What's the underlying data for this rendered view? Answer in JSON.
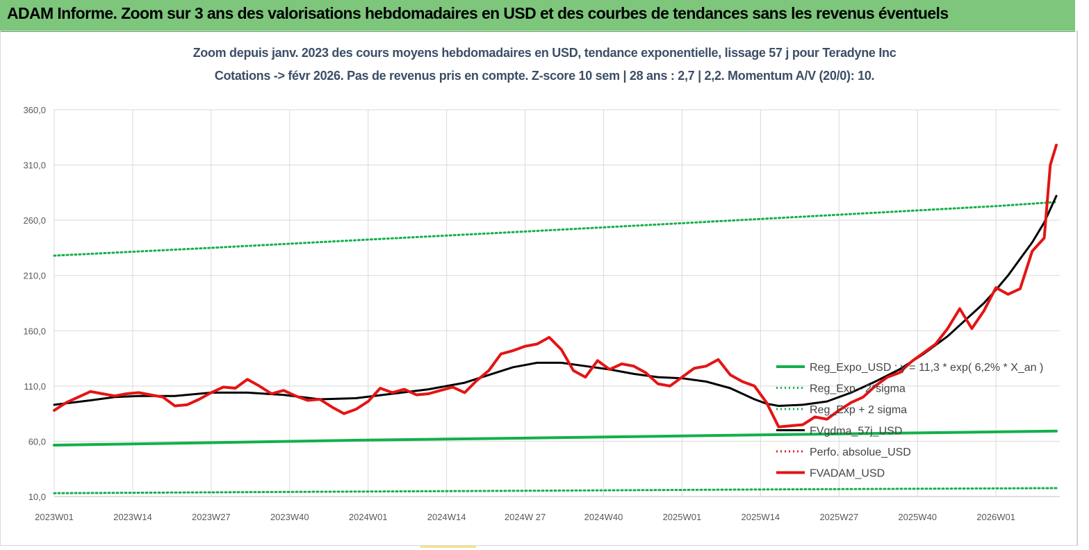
{
  "header": {
    "title": "ADAM Informe. Zoom sur 3 ans des valorisations hebdomadaires en USD et des courbes de tendances sans les revenus éventuels"
  },
  "chart_data": {
    "type": "line",
    "title": "Zoom depuis janv. 2023 des cours moyens hebdomadaires en USD, tendance exponentielle, lissage 57 j pour Teradyne Inc",
    "subtitle": "Cotations -> févr 2026.  Pas de revenus pris en compte. Z-score 10 sem  | 28 ans : 2,7 | 2,2. Momentum A/V (20/0): 10.",
    "xlabel": "",
    "ylabel": "",
    "ylim": [
      10,
      360
    ],
    "yticks": [
      "360,0",
      "310,0",
      "260,0",
      "210,0",
      "160,0",
      "110,0",
      "60,0",
      "10,0"
    ],
    "ytick_values": [
      360,
      310,
      260,
      210,
      160,
      110,
      60,
      10
    ],
    "xtick_labels": [
      "2023W01",
      "2023W14",
      "2023W27",
      "2023W40",
      "2024W01",
      "2024W14",
      "2024W 27",
      "2024W40",
      "2025W01",
      "2025W14",
      "2025W27",
      "2025W40",
      "2026W01"
    ],
    "xtick_weeks": [
      0,
      13,
      26,
      39,
      52,
      65,
      78,
      91,
      104,
      117,
      130,
      143,
      156
    ],
    "x_start": "2023W01",
    "n_weeks": 167,
    "grid": true,
    "legend_position": "right",
    "series": [
      {
        "name": "Reg_Expo_USD : y = 11,3 * exp( 6,2% *  X_an )",
        "color": "#12b04a",
        "style": "solid-thick",
        "points": [
          [
            0,
            56.5
          ],
          [
            24,
            58.5
          ],
          [
            48,
            60.8
          ],
          [
            72,
            62.5
          ],
          [
            96,
            64.2
          ],
          [
            120,
            66.0
          ],
          [
            144,
            67.6
          ],
          [
            166,
            69.2
          ]
        ]
      },
      {
        "name": "Reg_Exp - 2*sigma",
        "color": "#12b04a",
        "style": "dotted",
        "points": [
          [
            0,
            13.0
          ],
          [
            40,
            14.2
          ],
          [
            80,
            15.3
          ],
          [
            120,
            16.5
          ],
          [
            166,
            17.6
          ]
        ]
      },
      {
        "name": "Reg_Exp + 2 sigma",
        "color": "#12b04a",
        "style": "dotted",
        "points": [
          [
            0,
            228.0
          ],
          [
            26,
            235.0
          ],
          [
            52,
            242.5
          ],
          [
            78,
            249.8
          ],
          [
            104,
            257.3
          ],
          [
            130,
            265.0
          ],
          [
            156,
            272.8
          ],
          [
            166,
            276.5
          ]
        ]
      },
      {
        "name": "FVgdma_57j_USD",
        "color": "#000000",
        "style": "solid",
        "points": [
          [
            0,
            93
          ],
          [
            6,
            97
          ],
          [
            10,
            100
          ],
          [
            14,
            101
          ],
          [
            20,
            101
          ],
          [
            26,
            104
          ],
          [
            32,
            104
          ],
          [
            38,
            102
          ],
          [
            44,
            98
          ],
          [
            50,
            99
          ],
          [
            56,
            103
          ],
          [
            62,
            107
          ],
          [
            68,
            113
          ],
          [
            72,
            120
          ],
          [
            76,
            127
          ],
          [
            80,
            131
          ],
          [
            84,
            131
          ],
          [
            88,
            128
          ],
          [
            92,
            125
          ],
          [
            96,
            121
          ],
          [
            100,
            118
          ],
          [
            104,
            117
          ],
          [
            108,
            114
          ],
          [
            112,
            108
          ],
          [
            116,
            98
          ],
          [
            118,
            94
          ],
          [
            120,
            92
          ],
          [
            124,
            93
          ],
          [
            128,
            96
          ],
          [
            132,
            104
          ],
          [
            136,
            114
          ],
          [
            140,
            125
          ],
          [
            144,
            139
          ],
          [
            148,
            155
          ],
          [
            150,
            165
          ],
          [
            152,
            175
          ],
          [
            154,
            185
          ],
          [
            156,
            197
          ],
          [
            158,
            210
          ],
          [
            160,
            225
          ],
          [
            162,
            240
          ],
          [
            164,
            258
          ],
          [
            166,
            282
          ]
        ]
      },
      {
        "name": "Perfo. absolue_USD",
        "color": "#e02020",
        "style": "dotted",
        "points": []
      },
      {
        "name": "FVADAM_USD",
        "color": "#e41414",
        "style": "solid-thick",
        "points": [
          [
            0,
            88
          ],
          [
            2,
            95
          ],
          [
            4,
            100
          ],
          [
            6,
            105
          ],
          [
            8,
            103
          ],
          [
            10,
            101
          ],
          [
            12,
            103
          ],
          [
            14,
            104
          ],
          [
            16,
            102
          ],
          [
            18,
            100
          ],
          [
            20,
            92
          ],
          [
            22,
            93
          ],
          [
            24,
            98
          ],
          [
            26,
            104
          ],
          [
            28,
            109
          ],
          [
            30,
            108
          ],
          [
            32,
            116
          ],
          [
            34,
            110
          ],
          [
            36,
            103
          ],
          [
            38,
            106
          ],
          [
            40,
            101
          ],
          [
            42,
            97
          ],
          [
            44,
            98
          ],
          [
            46,
            91
          ],
          [
            48,
            85
          ],
          [
            50,
            89
          ],
          [
            52,
            96
          ],
          [
            54,
            108
          ],
          [
            56,
            104
          ],
          [
            58,
            107
          ],
          [
            60,
            102
          ],
          [
            62,
            103
          ],
          [
            64,
            106
          ],
          [
            66,
            109
          ],
          [
            68,
            104
          ],
          [
            70,
            115
          ],
          [
            72,
            124
          ],
          [
            74,
            139
          ],
          [
            76,
            142
          ],
          [
            78,
            146
          ],
          [
            80,
            148
          ],
          [
            82,
            154
          ],
          [
            84,
            143
          ],
          [
            86,
            124
          ],
          [
            88,
            118
          ],
          [
            90,
            133
          ],
          [
            92,
            125
          ],
          [
            94,
            130
          ],
          [
            96,
            128
          ],
          [
            98,
            122
          ],
          [
            100,
            112
          ],
          [
            102,
            110
          ],
          [
            104,
            118
          ],
          [
            106,
            126
          ],
          [
            108,
            128
          ],
          [
            110,
            134
          ],
          [
            112,
            120
          ],
          [
            114,
            114
          ],
          [
            116,
            110
          ],
          [
            118,
            95
          ],
          [
            120,
            73
          ],
          [
            122,
            74
          ],
          [
            124,
            75
          ],
          [
            126,
            82
          ],
          [
            128,
            80
          ],
          [
            130,
            88
          ],
          [
            132,
            95
          ],
          [
            134,
            100
          ],
          [
            136,
            110
          ],
          [
            138,
            118
          ],
          [
            140,
            122
          ],
          [
            142,
            132
          ],
          [
            144,
            140
          ],
          [
            146,
            148
          ],
          [
            148,
            162
          ],
          [
            150,
            180
          ],
          [
            152,
            162
          ],
          [
            154,
            178
          ],
          [
            156,
            199
          ],
          [
            158,
            193
          ],
          [
            160,
            198
          ],
          [
            162,
            232
          ],
          [
            164,
            244
          ],
          [
            165,
            310
          ],
          [
            166,
            328
          ]
        ]
      }
    ]
  }
}
